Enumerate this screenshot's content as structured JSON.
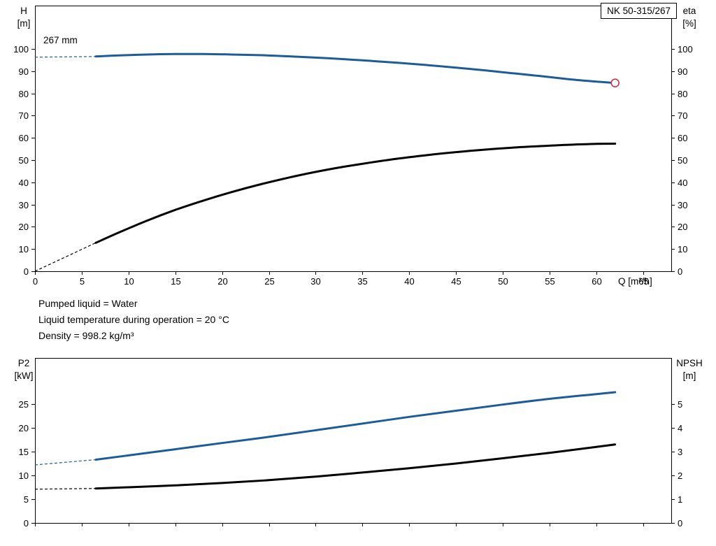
{
  "colors": {
    "primary": "#1d5c99",
    "secondary": "#000000",
    "marker": "#cc3344",
    "axis": "#000000"
  },
  "info_lines": [
    "Pumped liquid = Water",
    "Liquid temperature during operation = 20 °C",
    "Density = 998.2 kg/m³"
  ],
  "chart_data": [
    {
      "type": "line",
      "name": "qh-performance",
      "title": "NK 50-315/267",
      "annotation": "267 mm",
      "x_label": "Q [m³/h]",
      "x_range": [
        0,
        68
      ],
      "x_ticks": [
        0,
        5,
        10,
        15,
        20,
        25,
        30,
        35,
        40,
        45,
        50,
        55,
        60,
        65
      ],
      "x_tick_labels": true,
      "left_axis": {
        "label": "H [m]",
        "range": [
          0,
          119.5
        ],
        "ticks": [
          0,
          10,
          20,
          30,
          40,
          50,
          60,
          70,
          80,
          90,
          100
        ]
      },
      "right_axis": {
        "label": "eta [%]",
        "range": [
          0,
          119.5
        ],
        "ticks": [
          0,
          10,
          20,
          30,
          40,
          50,
          60,
          70,
          80,
          90,
          100
        ]
      },
      "series": [
        {
          "name": "head",
          "axis": "left",
          "color_key": "primary",
          "width": 3,
          "lead_dashed": [
            [
              0,
              96.3
            ],
            [
              6.5,
              96.6
            ]
          ],
          "points": [
            [
              6.5,
              96.6
            ],
            [
              9,
              97.1
            ],
            [
              12,
              97.5
            ],
            [
              15,
              97.7
            ],
            [
              18,
              97.7
            ],
            [
              21,
              97.5
            ],
            [
              24,
              97.2
            ],
            [
              27,
              96.7
            ],
            [
              30,
              96.1
            ],
            [
              33,
              95.4
            ],
            [
              36,
              94.6
            ],
            [
              39,
              93.7
            ],
            [
              42,
              92.7
            ],
            [
              45,
              91.6
            ],
            [
              48,
              90.4
            ],
            [
              51,
              89.1
            ],
            [
              54,
              87.8
            ],
            [
              57,
              86.4
            ],
            [
              60,
              85.3
            ],
            [
              62,
              84.7
            ]
          ],
          "marker": [
            62,
            84.7
          ]
        },
        {
          "name": "efficiency",
          "axis": "right",
          "color_key": "secondary",
          "width": 3,
          "lead_dashed": [
            [
              0,
              0
            ],
            [
              6.5,
              12.8
            ]
          ],
          "points": [
            [
              6.5,
              12.8
            ],
            [
              9,
              17.5
            ],
            [
              12,
              22.8
            ],
            [
              15,
              27.6
            ],
            [
              18,
              31.8
            ],
            [
              21,
              35.6
            ],
            [
              24,
              39
            ],
            [
              27,
              42
            ],
            [
              30,
              44.7
            ],
            [
              33,
              47
            ],
            [
              36,
              49
            ],
            [
              39,
              50.8
            ],
            [
              42,
              52.3
            ],
            [
              45,
              53.6
            ],
            [
              48,
              54.7
            ],
            [
              51,
              55.6
            ],
            [
              54,
              56.3
            ],
            [
              57,
              56.9
            ],
            [
              60,
              57.3
            ],
            [
              62,
              57.4
            ]
          ]
        }
      ]
    },
    {
      "type": "line",
      "name": "power-npsh",
      "x_label": "",
      "x_range": [
        0,
        68
      ],
      "x_ticks": [
        0,
        5,
        10,
        15,
        20,
        25,
        30,
        35,
        40,
        45,
        50,
        55,
        60,
        65
      ],
      "x_tick_labels": false,
      "left_axis": {
        "label": "P2 [kW]",
        "range": [
          0,
          34.7
        ],
        "ticks": [
          0,
          5,
          10,
          15,
          20,
          25
        ]
      },
      "right_axis": {
        "label": "NPSH [m]",
        "range": [
          0,
          6.94
        ],
        "ticks": [
          0,
          1,
          2,
          3,
          4,
          5
        ]
      },
      "series": [
        {
          "name": "power",
          "axis": "left",
          "color_key": "primary",
          "width": 3,
          "lead_dashed": [
            [
              0,
              12.2
            ],
            [
              6.5,
              13.3
            ]
          ],
          "points": [
            [
              6.5,
              13.3
            ],
            [
              10,
              14.2
            ],
            [
              15,
              15.5
            ],
            [
              20,
              16.8
            ],
            [
              25,
              18.1
            ],
            [
              30,
              19.5
            ],
            [
              35,
              20.9
            ],
            [
              40,
              22.3
            ],
            [
              45,
              23.6
            ],
            [
              50,
              24.9
            ],
            [
              55,
              26.1
            ],
            [
              60,
              27.1
            ],
            [
              62,
              27.5
            ]
          ]
        },
        {
          "name": "npsh",
          "axis": "right",
          "color_key": "secondary",
          "width": 3,
          "lead_dashed": [
            [
              0,
              1.42
            ],
            [
              6.5,
              1.45
            ]
          ],
          "points": [
            [
              6.5,
              1.45
            ],
            [
              10,
              1.5
            ],
            [
              15,
              1.58
            ],
            [
              20,
              1.68
            ],
            [
              25,
              1.8
            ],
            [
              30,
              1.95
            ],
            [
              35,
              2.12
            ],
            [
              40,
              2.3
            ],
            [
              45,
              2.5
            ],
            [
              50,
              2.72
            ],
            [
              55,
              2.95
            ],
            [
              60,
              3.2
            ],
            [
              62,
              3.3
            ]
          ]
        }
      ]
    }
  ]
}
